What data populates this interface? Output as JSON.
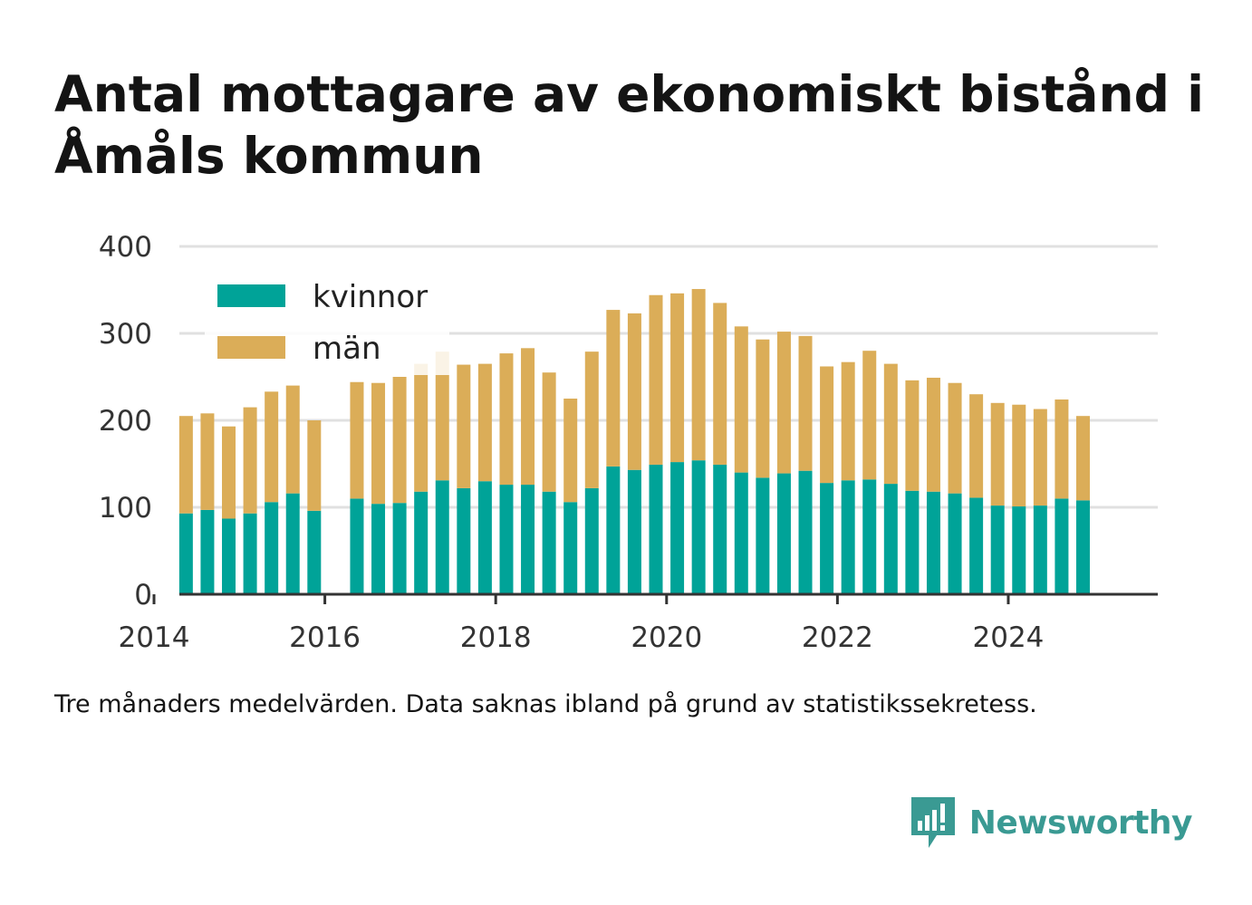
{
  "title": "Antal mottagare av ekonomiskt bistånd i Åmåls kommun",
  "note": "Tre månaders medelvärden. Data saknas ibland på grund av statistikssekretess.",
  "brand": {
    "name": "Newsworthy",
    "icon": "newsworthy-logo-icon"
  },
  "colors": {
    "kvinnor": "#00a398",
    "man": "#dbad58",
    "grid": "#e0e0e0",
    "axis": "#333333"
  },
  "chart_data": {
    "type": "bar",
    "stacked": true,
    "title": "Antal mottagare av ekonomiskt bistånd i Åmåls kommun",
    "xlabel": "",
    "ylabel": "",
    "ylim": [
      0,
      400
    ],
    "yticks": [
      0,
      100,
      200,
      300,
      400
    ],
    "xlim": [
      2014.0,
      2025.75
    ],
    "xticks": [
      2014,
      2016,
      2018,
      2020,
      2022,
      2024
    ],
    "grid": true,
    "legend_position": "top-left",
    "x": [
      2014.375,
      2014.625,
      2014.875,
      2015.125,
      2015.375,
      2015.625,
      2015.875,
      2016.375,
      2016.625,
      2016.875,
      2017.125,
      2017.375,
      2017.625,
      2017.875,
      2018.125,
      2018.375,
      2018.625,
      2018.875,
      2019.125,
      2019.375,
      2019.625,
      2019.875,
      2020.125,
      2020.375,
      2020.625,
      2020.875,
      2021.125,
      2021.375,
      2021.625,
      2021.875,
      2022.125,
      2022.375,
      2022.625,
      2022.875,
      2023.125,
      2023.375,
      2023.625,
      2023.875,
      2024.125,
      2024.375,
      2024.625,
      2024.875
    ],
    "series": [
      {
        "name": "kvinnor",
        "color": "#00a398",
        "values": [
          93,
          97,
          87,
          93,
          106,
          116,
          96,
          110,
          104,
          105,
          118,
          131,
          122,
          130,
          126,
          126,
          118,
          106,
          122,
          147,
          143,
          149,
          152,
          154,
          149,
          140,
          134,
          139,
          142,
          128,
          131,
          132,
          127,
          119,
          118,
          116,
          111,
          102,
          101,
          102,
          110,
          108
        ]
      },
      {
        "name": "män",
        "color": "#dbad58",
        "values": [
          112,
          111,
          106,
          122,
          127,
          124,
          104,
          134,
          139,
          145,
          147,
          148,
          142,
          135,
          151,
          157,
          137,
          119,
          157,
          180,
          180,
          195,
          194,
          197,
          186,
          168,
          159,
          163,
          155,
          134,
          136,
          148,
          138,
          127,
          131,
          127,
          119,
          118,
          117,
          111,
          114,
          97
        ]
      }
    ]
  }
}
